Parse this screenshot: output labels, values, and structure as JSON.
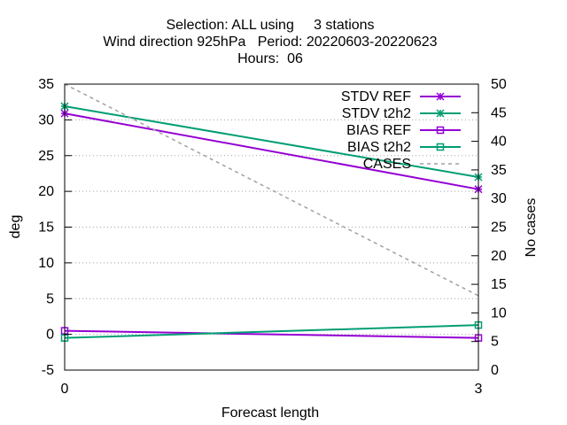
{
  "chart_data": {
    "type": "line",
    "title_lines": [
      "Selection: ALL using     3 stations",
      "Wind direction 925hPa   Period: 20220603-20220623",
      "Hours:  06"
    ],
    "xlabel": "Forecast length",
    "ylabel": "deg",
    "y2label": "No cases",
    "x_ticks": [
      0,
      3
    ],
    "xlim": [
      0,
      3
    ],
    "ylim": [
      -5,
      35
    ],
    "y_ticks": [
      -5,
      0,
      5,
      10,
      15,
      20,
      25,
      30,
      35
    ],
    "y2lim": [
      0,
      50
    ],
    "y2_ticks": [
      0,
      5,
      10,
      15,
      20,
      25,
      30,
      35,
      40,
      45,
      50
    ],
    "grid": "horizontal dotted",
    "legend_position": "top-right",
    "series": [
      {
        "name": "STDV REF",
        "axis": "y",
        "color": "#9400d3",
        "marker": "star",
        "x": [
          0,
          3
        ],
        "y": [
          30.9,
          20.3
        ]
      },
      {
        "name": "STDV t2h2",
        "axis": "y",
        "color": "#009e73",
        "marker": "star",
        "x": [
          0,
          3
        ],
        "y": [
          31.9,
          22.0
        ]
      },
      {
        "name": "BIAS REF",
        "axis": "y",
        "color": "#9400d3",
        "marker": "square",
        "x": [
          0,
          3
        ],
        "y": [
          0.5,
          -0.5
        ]
      },
      {
        "name": "BIAS t2h2",
        "axis": "y",
        "color": "#009e73",
        "marker": "square",
        "x": [
          0,
          3
        ],
        "y": [
          -0.5,
          1.3
        ]
      },
      {
        "name": "CASES",
        "axis": "y2",
        "color": "#a0a0a0",
        "marker": "none",
        "dash": true,
        "x": [
          0,
          3
        ],
        "y": [
          50,
          13
        ]
      }
    ]
  }
}
